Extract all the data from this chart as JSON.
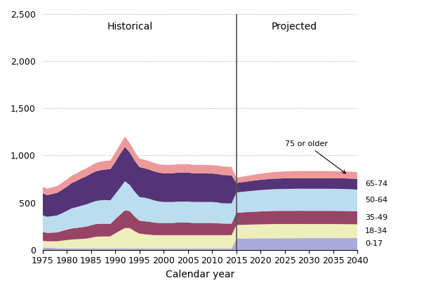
{
  "title": "",
  "xlabel": "Calendar year",
  "ylabel": "",
  "ylim": [
    0,
    2500
  ],
  "yticks": [
    0,
    500,
    1000,
    1500,
    2000,
    2500
  ],
  "ytick_labels": [
    "0",
    "500",
    "1,000",
    "1,500",
    "2,000",
    "2,500"
  ],
  "divider_year": 2015,
  "historical_label": "Historical",
  "projected_label": "Projected",
  "annotation_text": "75 or older",
  "colors": {
    "0-17": "#aaaadd",
    "18-34": "#eeeebb",
    "35-49": "#994466",
    "50-64": "#bbddf0",
    "65-74": "#553377",
    "75+": "#ee9999"
  },
  "years_hist": [
    1975,
    1976,
    1977,
    1978,
    1979,
    1980,
    1981,
    1982,
    1983,
    1984,
    1985,
    1986,
    1987,
    1988,
    1989,
    1990,
    1991,
    1992,
    1993,
    1994,
    1995,
    1996,
    1997,
    1998,
    1999,
    2000,
    2001,
    2002,
    2003,
    2004,
    2005,
    2006,
    2007,
    2008,
    2009,
    2010,
    2011,
    2012,
    2013,
    2014
  ],
  "years_proj": [
    2015,
    2016,
    2017,
    2018,
    2019,
    2020,
    2021,
    2022,
    2023,
    2024,
    2025,
    2026,
    2027,
    2028,
    2029,
    2030,
    2031,
    2032,
    2033,
    2034,
    2035,
    2036,
    2037,
    2038,
    2039,
    2040
  ],
  "data_hist": {
    "0-17": [
      25,
      22,
      20,
      18,
      17,
      15,
      14,
      14,
      13,
      13,
      13,
      13,
      13,
      13,
      13,
      14,
      14,
      16,
      15,
      13,
      13,
      12,
      12,
      12,
      12,
      12,
      12,
      12,
      12,
      12,
      12,
      12,
      12,
      12,
      12,
      12,
      12,
      12,
      12,
      12
    ],
    "18-34": [
      70,
      68,
      70,
      72,
      80,
      88,
      95,
      98,
      102,
      105,
      115,
      125,
      128,
      128,
      130,
      160,
      190,
      215,
      215,
      185,
      158,
      153,
      148,
      143,
      143,
      143,
      143,
      143,
      143,
      143,
      143,
      143,
      143,
      143,
      143,
      143,
      143,
      143,
      143,
      143
    ],
    "35-49": [
      95,
      90,
      92,
      94,
      102,
      110,
      117,
      120,
      124,
      128,
      132,
      136,
      136,
      136,
      132,
      152,
      168,
      188,
      180,
      155,
      138,
      138,
      138,
      134,
      130,
      130,
      130,
      130,
      134,
      134,
      134,
      130,
      130,
      130,
      130,
      130,
      126,
      124,
      123,
      122
    ],
    "50-64": [
      175,
      170,
      175,
      180,
      188,
      200,
      213,
      220,
      228,
      235,
      240,
      243,
      248,
      250,
      250,
      265,
      285,
      308,
      278,
      264,
      250,
      250,
      243,
      235,
      228,
      222,
      222,
      222,
      222,
      222,
      222,
      222,
      222,
      222,
      222,
      222,
      222,
      215,
      215,
      215
    ],
    "65-74": [
      235,
      230,
      235,
      240,
      248,
      255,
      268,
      278,
      290,
      298,
      308,
      315,
      320,
      325,
      330,
      340,
      358,
      365,
      345,
      330,
      318,
      312,
      310,
      308,
      306,
      304,
      304,
      306,
      308,
      308,
      308,
      305,
      304,
      304,
      302,
      302,
      302,
      300,
      299,
      298
    ],
    "75+": [
      70,
      68,
      70,
      72,
      74,
      76,
      78,
      79,
      82,
      83,
      85,
      88,
      90,
      91,
      93,
      98,
      102,
      108,
      100,
      95,
      91,
      90,
      89,
      89,
      89,
      89,
      89,
      89,
      89,
      89,
      89,
      89,
      89,
      89,
      89,
      89,
      89,
      89,
      89,
      89
    ]
  },
  "data_proj": {
    "0-17": [
      120,
      120,
      121,
      121,
      122,
      122,
      122,
      122,
      123,
      123,
      123,
      123,
      123,
      124,
      124,
      124,
      124,
      124,
      124,
      124,
      124,
      124,
      124,
      124,
      124,
      124
    ],
    "18-34": [
      143,
      144,
      145,
      146,
      147,
      148,
      149,
      150,
      150,
      150,
      150,
      150,
      150,
      150,
      149,
      149,
      149,
      149,
      149,
      149,
      149,
      148,
      148,
      147,
      147,
      146
    ],
    "35-49": [
      130,
      132,
      133,
      135,
      136,
      137,
      138,
      139,
      140,
      140,
      140,
      140,
      140,
      140,
      140,
      140,
      140,
      140,
      140,
      140,
      140,
      140,
      140,
      140,
      139,
      138
    ],
    "50-64": [
      215,
      218,
      220,
      222,
      224,
      226,
      228,
      229,
      230,
      231,
      232,
      233,
      234,
      234,
      234,
      234,
      234,
      234,
      234,
      234,
      234,
      234,
      233,
      232,
      231,
      230
    ],
    "65-74": [
      100,
      102,
      104,
      106,
      108,
      109,
      110,
      111,
      112,
      112,
      113,
      113,
      113,
      113,
      113,
      113,
      113,
      113,
      113,
      113,
      113,
      113,
      113,
      113,
      113,
      113
    ],
    "75+": [
      55,
      57,
      59,
      61,
      63,
      65,
      67,
      69,
      71,
      72,
      73,
      74,
      75,
      75,
      75,
      75,
      75,
      75,
      75,
      75,
      74,
      74,
      74,
      74,
      73,
      73
    ]
  },
  "bg_color": "#ffffff",
  "grid_color": "#aaaaaa"
}
